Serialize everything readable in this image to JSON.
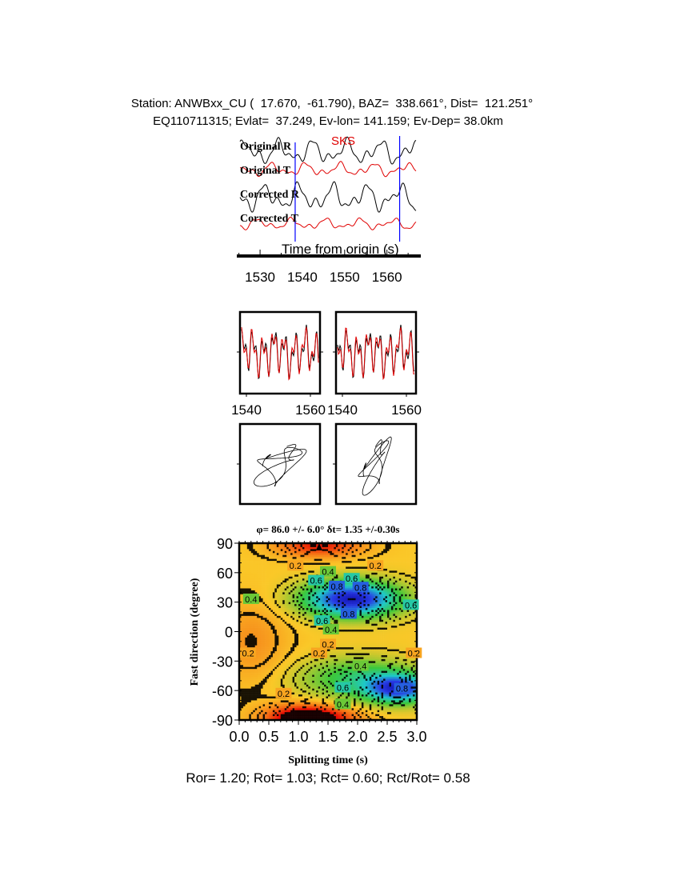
{
  "header": {
    "station_line": "Station: ANWBxx_CU (  17.670,  -61.790), BAZ=  338.661°, Dist=  121.251°",
    "event_line": "EQ110711315; Evlat=  37.249, Ev-lon= 141.159; Ev-Dep= 38.0km"
  },
  "footer": {
    "ratios": "Ror= 1.20; Rot= 1.03; Rct= 0.60; Rct/Rot= 0.58"
  },
  "colors": {
    "radial": "#000000",
    "transverse": "#e00000",
    "window_marker": "#0000ff",
    "phase_label": "#e00000"
  },
  "chart_data": [
    {
      "type": "line",
      "phase_label": "SKS",
      "trace_labels": [
        "Original R",
        "Original T",
        "Corrected R",
        "Corrected T"
      ],
      "xlabel": "Time from origin (s)",
      "xticks": [
        1530,
        1540,
        1550,
        1560
      ],
      "xlim": [
        1524.5,
        1568
      ],
      "window": [
        1538.3,
        1563
      ]
    },
    {
      "type": "line",
      "panel": "waveform-overlay-left",
      "xticks": [
        1540,
        1560
      ],
      "xlim": [
        1538,
        1563
      ]
    },
    {
      "type": "line",
      "panel": "waveform-overlay-right",
      "xticks": [
        1540,
        1560
      ],
      "xlim": [
        1538,
        1563
      ]
    },
    {
      "type": "line",
      "panel": "particle-motion-left"
    },
    {
      "type": "line",
      "panel": "particle-motion-right"
    },
    {
      "type": "heatmap",
      "title": "φ= 86.0 +/- 6.0° δt= 1.35 +/-0.30s",
      "xlabel": "Splitting time (s)",
      "ylabel": "Fast direction (degree)",
      "xlim": [
        0,
        3
      ],
      "ylim": [
        -90,
        90
      ],
      "xticks": [
        "0.0",
        "0.5",
        "1.0",
        "1.5",
        "2.0",
        "2.5",
        "3.0"
      ],
      "yticks": [
        "90",
        "60",
        "30",
        "0",
        "-30",
        "-60",
        "-90"
      ],
      "best": {
        "dt": 1.35,
        "phi": 86.0
      },
      "contour_labels": [
        {
          "text": "0.2",
          "x": 0.95,
          "y": 67
        },
        {
          "text": "0.4",
          "x": 1.5,
          "y": 61
        },
        {
          "text": "0.6",
          "x": 1.3,
          "y": 52
        },
        {
          "text": "0.6",
          "x": 1.9,
          "y": 54
        },
        {
          "text": "0.8",
          "x": 1.65,
          "y": 46
        },
        {
          "text": "0.8",
          "x": 2.05,
          "y": 45
        },
        {
          "text": "0.2",
          "x": 2.3,
          "y": 67
        },
        {
          "text": "0.4",
          "x": 0.2,
          "y": 33
        },
        {
          "text": "0.6",
          "x": 2.9,
          "y": 27
        },
        {
          "text": "0.8",
          "x": 1.85,
          "y": 18
        },
        {
          "text": "0.6",
          "x": 1.4,
          "y": 11
        },
        {
          "text": "0.4",
          "x": 1.55,
          "y": 2
        },
        {
          "text": "0.2",
          "x": 1.5,
          "y": -13
        },
        {
          "text": "0.2",
          "x": 0.15,
          "y": -22
        },
        {
          "text": "0.2",
          "x": 1.35,
          "y": -22
        },
        {
          "text": "0.2",
          "x": 2.95,
          "y": -22
        },
        {
          "text": "0.4",
          "x": 2.05,
          "y": -35
        },
        {
          "text": "0.6",
          "x": 1.75,
          "y": -57
        },
        {
          "text": "0.8",
          "x": 2.75,
          "y": -58
        },
        {
          "text": "0.2",
          "x": 0.75,
          "y": -63
        },
        {
          "text": "0.4",
          "x": 1.75,
          "y": -74
        }
      ]
    }
  ]
}
